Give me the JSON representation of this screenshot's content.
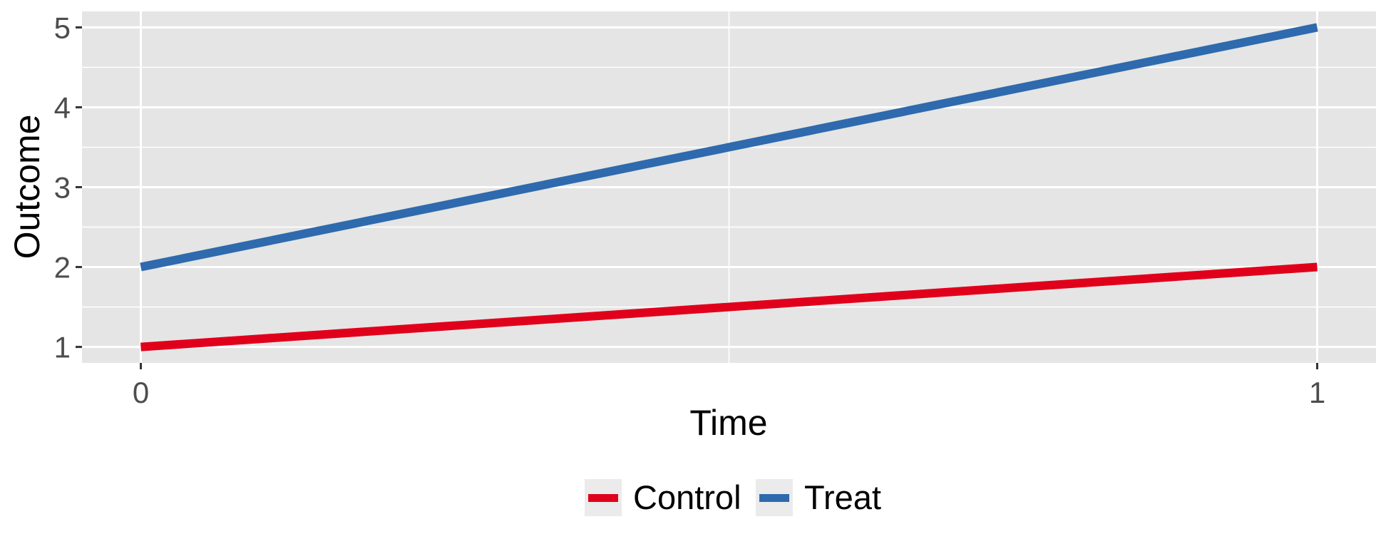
{
  "chart_data": {
    "type": "line",
    "x": [
      0,
      1
    ],
    "series": [
      {
        "name": "Control",
        "values": [
          1,
          2
        ],
        "color": "#e0001b"
      },
      {
        "name": "Treat",
        "values": [
          2,
          5
        ],
        "color": "#2e6aad"
      }
    ],
    "x_ticks": [
      "0",
      "1"
    ],
    "y_ticks": [
      "1",
      "2",
      "3",
      "4",
      "5"
    ],
    "xlabel": "Time",
    "ylabel": "Outcome",
    "xlim": [
      -0.05,
      1.05
    ],
    "ylim": [
      0.8,
      5.2
    ],
    "grid": true,
    "legend_position": "bottom",
    "panel_color": "#e5e5e5",
    "grid_color": "#ffffff"
  }
}
